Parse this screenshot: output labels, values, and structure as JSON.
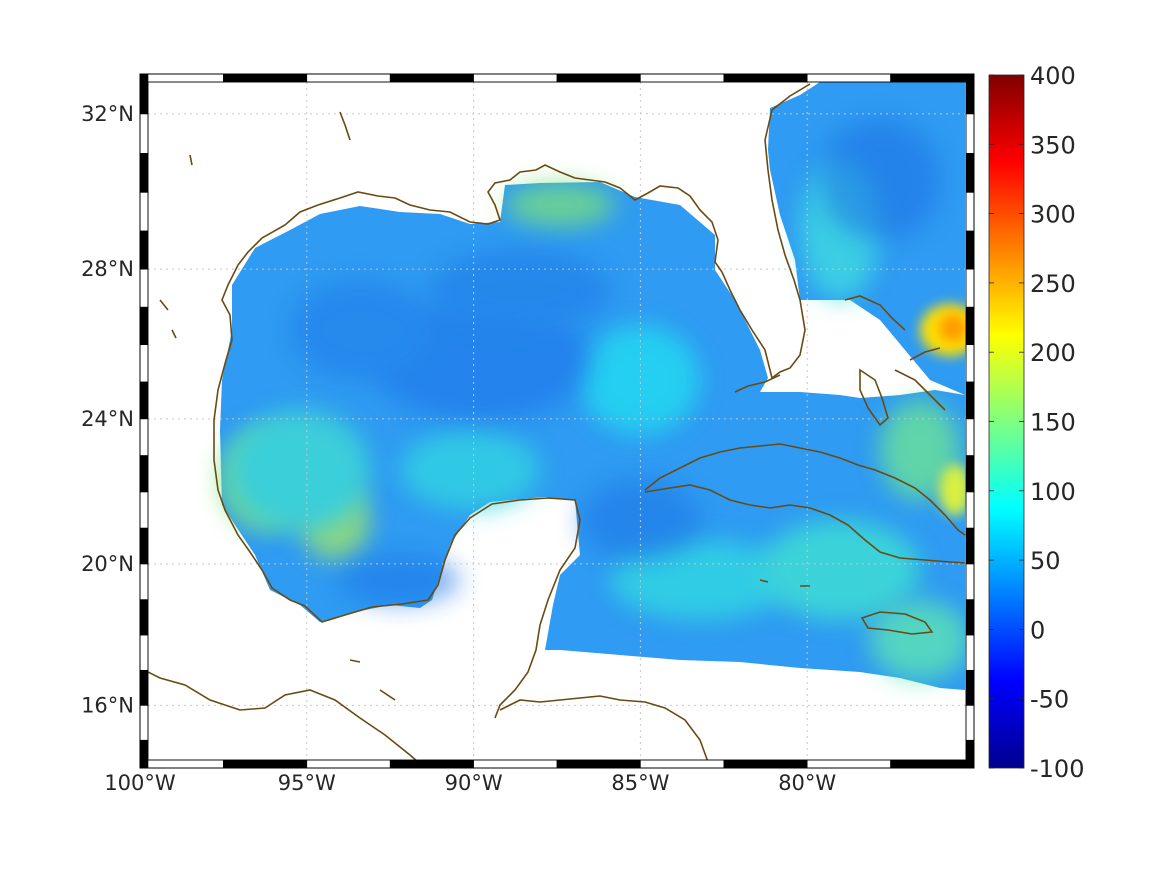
{
  "map": {
    "projection": "mercator",
    "lon_range": [
      -100,
      -75
    ],
    "lat_range": [
      14.2,
      33
    ],
    "lon_tick_labels": [
      {
        "lon": -100,
        "label": "100°W"
      },
      {
        "lon": -95,
        "label": "95°W"
      },
      {
        "lon": -90,
        "label": "90°W"
      },
      {
        "lon": -85,
        "label": "85°W"
      },
      {
        "lon": -80,
        "label": "80°W"
      }
    ],
    "lat_tick_labels": [
      {
        "lat": 32,
        "label": "32°N"
      },
      {
        "lat": 28,
        "label": "28°N"
      },
      {
        "lat": 24,
        "label": "24°N"
      },
      {
        "lat": 20,
        "label": "20°N"
      },
      {
        "lat": 16,
        "label": "16°N"
      }
    ],
    "grid": "dotted",
    "frame": "black-white-checkered",
    "coastline_color": "#6b4a12",
    "field": {
      "colormap": "jet",
      "typical_range": [
        40,
        150
      ],
      "peak_value": 250,
      "peak_location": "east of the Bahamas near 26.5°N 75.5°W"
    }
  },
  "colorbar": {
    "min": -100,
    "max": 400,
    "ticks": [
      "400",
      "350",
      "300",
      "250",
      "200",
      "150",
      "100",
      "50",
      "0",
      "-50",
      "-100"
    ],
    "colormap": "jet"
  }
}
